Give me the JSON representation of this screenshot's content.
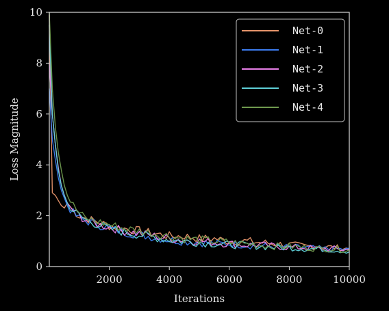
{
  "chart_data": {
    "type": "line",
    "title": "",
    "xlabel": "Iterations",
    "ylabel": "Loss Magnitude",
    "xlim": [
      0,
      10000
    ],
    "ylim": [
      0,
      10
    ],
    "x_ticks": [
      2000,
      4000,
      6000,
      8000,
      10000
    ],
    "y_ticks": [
      0,
      2,
      4,
      6,
      8,
      10
    ],
    "grid": false,
    "legend_position": "top-right",
    "x": [
      0,
      100,
      200,
      300,
      400,
      500,
      600,
      800,
      1000,
      1200,
      1500,
      2000,
      2500,
      3000,
      3500,
      4000,
      4500,
      5000,
      5500,
      6000,
      6500,
      7000,
      7500,
      8000,
      8500,
      9000,
      9500,
      10000
    ],
    "series": [
      {
        "name": "Net-0",
        "color": "#e8956b",
        "values": [
          9.9,
          2.9,
          2.8,
          2.6,
          2.4,
          2.3,
          2.5,
          2.2,
          2.0,
          1.9,
          1.8,
          1.6,
          1.5,
          1.4,
          1.3,
          1.2,
          1.2,
          1.1,
          1.1,
          1.0,
          1.0,
          0.95,
          0.9,
          0.85,
          0.8,
          0.8,
          0.75,
          0.7
        ]
      },
      {
        "name": "Net-1",
        "color": "#3c7cf0",
        "values": [
          7.0,
          5.0,
          4.2,
          3.5,
          3.0,
          2.7,
          2.4,
          2.1,
          1.9,
          1.8,
          1.7,
          1.5,
          1.35,
          1.25,
          1.15,
          1.05,
          1.0,
          0.95,
          0.9,
          0.9,
          0.85,
          0.8,
          0.8,
          0.75,
          0.75,
          0.7,
          0.7,
          0.65
        ]
      },
      {
        "name": "Net-2",
        "color": "#e87fe8",
        "values": [
          8.0,
          6.0,
          4.8,
          3.9,
          3.2,
          2.8,
          2.5,
          2.2,
          2.0,
          1.85,
          1.7,
          1.55,
          1.4,
          1.3,
          1.2,
          1.1,
          1.05,
          1.0,
          0.95,
          0.9,
          0.85,
          0.85,
          0.8,
          0.75,
          0.75,
          0.7,
          0.7,
          0.65
        ]
      },
      {
        "name": "Net-3",
        "color": "#5fd0d8",
        "values": [
          9.5,
          6.0,
          4.8,
          3.8,
          3.2,
          2.8,
          2.5,
          2.2,
          2.0,
          1.85,
          1.7,
          1.5,
          1.35,
          1.25,
          1.15,
          1.05,
          1.0,
          0.95,
          0.9,
          0.85,
          0.85,
          0.8,
          0.75,
          0.75,
          0.7,
          0.7,
          0.65,
          0.6
        ]
      },
      {
        "name": "Net-4",
        "color": "#6f9a4e",
        "values": [
          10.0,
          7.0,
          5.5,
          4.5,
          3.8,
          3.2,
          2.8,
          2.4,
          2.1,
          1.9,
          1.8,
          1.65,
          1.5,
          1.4,
          1.3,
          1.2,
          1.1,
          1.05,
          1.0,
          0.95,
          0.9,
          0.85,
          0.8,
          0.8,
          0.75,
          0.7,
          0.7,
          0.65
        ]
      }
    ]
  }
}
